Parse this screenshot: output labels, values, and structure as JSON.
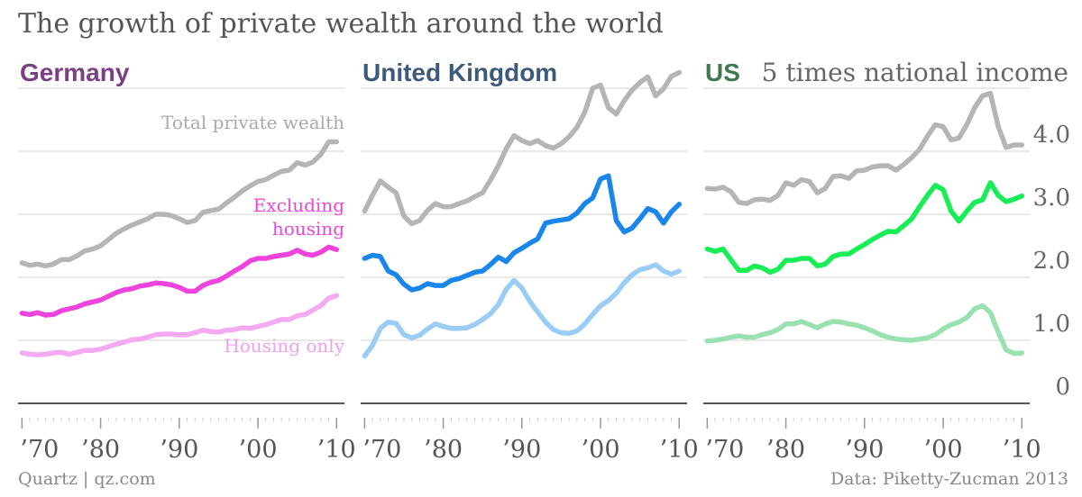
{
  "title": "The growth of private wealth around the world",
  "source": "Quartz | qz.com",
  "credit": "Data: Piketty-Zucman 2013",
  "y_axis_note": "5 times national income",
  "colors": {
    "Germany": {
      "title": "#7b3f84",
      "total": "#b5b5b5",
      "excl": "#ee44dd",
      "housing": "#f3aaf0"
    },
    "United Kingdom": {
      "title": "#3d5a7a",
      "total": "#b5b5b5",
      "excl": "#1a86ea",
      "housing": "#99cdf5"
    },
    "US": {
      "title": "#3f7a4f",
      "total": "#b5b5b5",
      "excl": "#17ee55",
      "housing": "#99e2b0"
    }
  },
  "chart_data": [
    {
      "type": "line",
      "title": "Germany",
      "xlabel": "",
      "ylabel": "",
      "x": [
        1970,
        1971,
        1972,
        1973,
        1974,
        1975,
        1976,
        1977,
        1978,
        1979,
        1980,
        1981,
        1982,
        1983,
        1984,
        1985,
        1986,
        1987,
        1988,
        1989,
        1990,
        1991,
        1992,
        1993,
        1994,
        1995,
        1996,
        1997,
        1998,
        1999,
        2000,
        2001,
        2002,
        2003,
        2004,
        2005,
        2006,
        2007,
        2008,
        2009,
        2010
      ],
      "xticks": [
        "’70",
        "’80",
        "’90",
        "’00",
        "’10"
      ],
      "ylim": [
        0,
        5
      ],
      "yticks": [
        "0",
        "1.0",
        "2.0",
        "3.0",
        "4.0"
      ],
      "grid": true,
      "series": [
        {
          "name": "Total private wealth",
          "values": [
            2.23,
            2.19,
            2.21,
            2.18,
            2.21,
            2.28,
            2.28,
            2.34,
            2.42,
            2.45,
            2.5,
            2.6,
            2.7,
            2.77,
            2.83,
            2.88,
            2.93,
            3.0,
            3.0,
            2.98,
            2.93,
            2.87,
            2.9,
            3.03,
            3.06,
            3.08,
            3.18,
            3.27,
            3.37,
            3.45,
            3.52,
            3.55,
            3.62,
            3.68,
            3.7,
            3.82,
            3.78,
            3.83,
            3.95,
            4.15,
            4.15
          ]
        },
        {
          "name": "Excluding housing",
          "values": [
            1.43,
            1.41,
            1.44,
            1.4,
            1.41,
            1.47,
            1.5,
            1.53,
            1.58,
            1.61,
            1.64,
            1.7,
            1.76,
            1.8,
            1.82,
            1.86,
            1.88,
            1.91,
            1.9,
            1.88,
            1.84,
            1.78,
            1.78,
            1.87,
            1.92,
            1.95,
            2.02,
            2.1,
            2.17,
            2.26,
            2.3,
            2.3,
            2.33,
            2.35,
            2.37,
            2.43,
            2.37,
            2.35,
            2.4,
            2.48,
            2.44
          ]
        },
        {
          "name": "Housing only",
          "values": [
            0.8,
            0.78,
            0.77,
            0.78,
            0.8,
            0.81,
            0.78,
            0.81,
            0.84,
            0.84,
            0.86,
            0.9,
            0.94,
            0.97,
            1.01,
            1.02,
            1.05,
            1.09,
            1.1,
            1.1,
            1.09,
            1.09,
            1.12,
            1.16,
            1.14,
            1.13,
            1.16,
            1.17,
            1.2,
            1.19,
            1.22,
            1.25,
            1.29,
            1.33,
            1.33,
            1.39,
            1.41,
            1.48,
            1.55,
            1.67,
            1.71
          ]
        }
      ]
    },
    {
      "type": "line",
      "title": "United Kingdom",
      "xlabel": "",
      "ylabel": "",
      "x": [
        1970,
        1971,
        1972,
        1973,
        1974,
        1975,
        1976,
        1977,
        1978,
        1979,
        1980,
        1981,
        1982,
        1983,
        1984,
        1985,
        1986,
        1987,
        1988,
        1989,
        1990,
        1991,
        1992,
        1993,
        1994,
        1995,
        1996,
        1997,
        1998,
        1999,
        2000,
        2001,
        2002,
        2003,
        2004,
        2005,
        2006,
        2007,
        2008,
        2009,
        2010
      ],
      "xticks": [
        "’70",
        "’80",
        "’90",
        "’00",
        "’10"
      ],
      "ylim": [
        0,
        5
      ],
      "yticks": [
        "0",
        "1.0",
        "2.0",
        "3.0",
        "4.0"
      ],
      "grid": true,
      "series": [
        {
          "name": "Total private wealth",
          "values": [
            3.05,
            3.3,
            3.53,
            3.43,
            3.34,
            2.97,
            2.85,
            2.9,
            3.06,
            3.17,
            3.12,
            3.12,
            3.17,
            3.21,
            3.28,
            3.34,
            3.54,
            3.77,
            4.04,
            4.25,
            4.17,
            4.12,
            4.17,
            4.09,
            4.05,
            4.12,
            4.23,
            4.38,
            4.62,
            5.0,
            5.05,
            4.69,
            4.59,
            4.8,
            4.97,
            5.09,
            5.18,
            4.88,
            4.99,
            5.19,
            5.25
          ]
        },
        {
          "name": "Excluding housing",
          "values": [
            2.3,
            2.35,
            2.33,
            2.1,
            2.04,
            1.89,
            1.8,
            1.83,
            1.9,
            1.87,
            1.87,
            1.95,
            1.98,
            2.03,
            2.08,
            2.1,
            2.2,
            2.32,
            2.25,
            2.39,
            2.46,
            2.54,
            2.61,
            2.86,
            2.89,
            2.91,
            2.93,
            3.02,
            3.17,
            3.26,
            3.56,
            3.61,
            2.9,
            2.72,
            2.78,
            2.93,
            3.09,
            3.04,
            2.86,
            3.04,
            3.16
          ]
        },
        {
          "name": "Housing only",
          "values": [
            0.75,
            0.92,
            1.19,
            1.29,
            1.27,
            1.09,
            1.04,
            1.08,
            1.18,
            1.26,
            1.22,
            1.19,
            1.19,
            1.2,
            1.25,
            1.33,
            1.42,
            1.57,
            1.81,
            1.95,
            1.83,
            1.62,
            1.45,
            1.29,
            1.17,
            1.12,
            1.11,
            1.15,
            1.26,
            1.41,
            1.55,
            1.63,
            1.75,
            1.91,
            2.04,
            2.12,
            2.15,
            2.2,
            2.1,
            2.05,
            2.1
          ]
        }
      ]
    },
    {
      "type": "line",
      "title": "US",
      "xlabel": "",
      "ylabel": "",
      "x": [
        1970,
        1971,
        1972,
        1973,
        1974,
        1975,
        1976,
        1977,
        1978,
        1979,
        1980,
        1981,
        1982,
        1983,
        1984,
        1985,
        1986,
        1987,
        1988,
        1989,
        1990,
        1991,
        1992,
        1993,
        1994,
        1995,
        1996,
        1997,
        1998,
        1999,
        2000,
        2001,
        2002,
        2003,
        2004,
        2005,
        2006,
        2007,
        2008,
        2009,
        2010
      ],
      "xticks": [
        "’70",
        "’80",
        "’90",
        "’00",
        "’10"
      ],
      "ylim": [
        0,
        5
      ],
      "yticks": [
        "0",
        "1.0",
        "2.0",
        "3.0",
        "4.0"
      ],
      "grid": true,
      "series": [
        {
          "name": "Total private wealth",
          "values": [
            3.41,
            3.4,
            3.43,
            3.36,
            3.19,
            3.17,
            3.23,
            3.24,
            3.22,
            3.3,
            3.5,
            3.46,
            3.55,
            3.52,
            3.34,
            3.41,
            3.6,
            3.61,
            3.57,
            3.69,
            3.7,
            3.75,
            3.77,
            3.77,
            3.7,
            3.79,
            3.9,
            4.03,
            4.24,
            4.42,
            4.39,
            4.18,
            4.21,
            4.42,
            4.69,
            4.88,
            4.92,
            4.39,
            4.06,
            4.1,
            4.1
          ]
        },
        {
          "name": "Excluding housing",
          "values": [
            2.45,
            2.41,
            2.45,
            2.28,
            2.11,
            2.11,
            2.18,
            2.15,
            2.08,
            2.13,
            2.27,
            2.27,
            2.3,
            2.3,
            2.18,
            2.21,
            2.33,
            2.37,
            2.37,
            2.45,
            2.52,
            2.6,
            2.67,
            2.73,
            2.72,
            2.82,
            2.93,
            3.12,
            3.3,
            3.46,
            3.39,
            3.05,
            2.89,
            3.05,
            3.19,
            3.23,
            3.5,
            3.3,
            3.2,
            3.24,
            3.29
          ]
        },
        {
          "name": "Housing only",
          "values": [
            0.99,
            1.0,
            1.02,
            1.05,
            1.07,
            1.05,
            1.05,
            1.09,
            1.12,
            1.17,
            1.26,
            1.26,
            1.3,
            1.25,
            1.2,
            1.26,
            1.3,
            1.29,
            1.26,
            1.24,
            1.2,
            1.15,
            1.09,
            1.05,
            1.02,
            1.01,
            1.0,
            1.02,
            1.04,
            1.09,
            1.18,
            1.25,
            1.29,
            1.36,
            1.5,
            1.55,
            1.44,
            1.13,
            0.85,
            0.79,
            0.8
          ]
        }
      ]
    }
  ]
}
